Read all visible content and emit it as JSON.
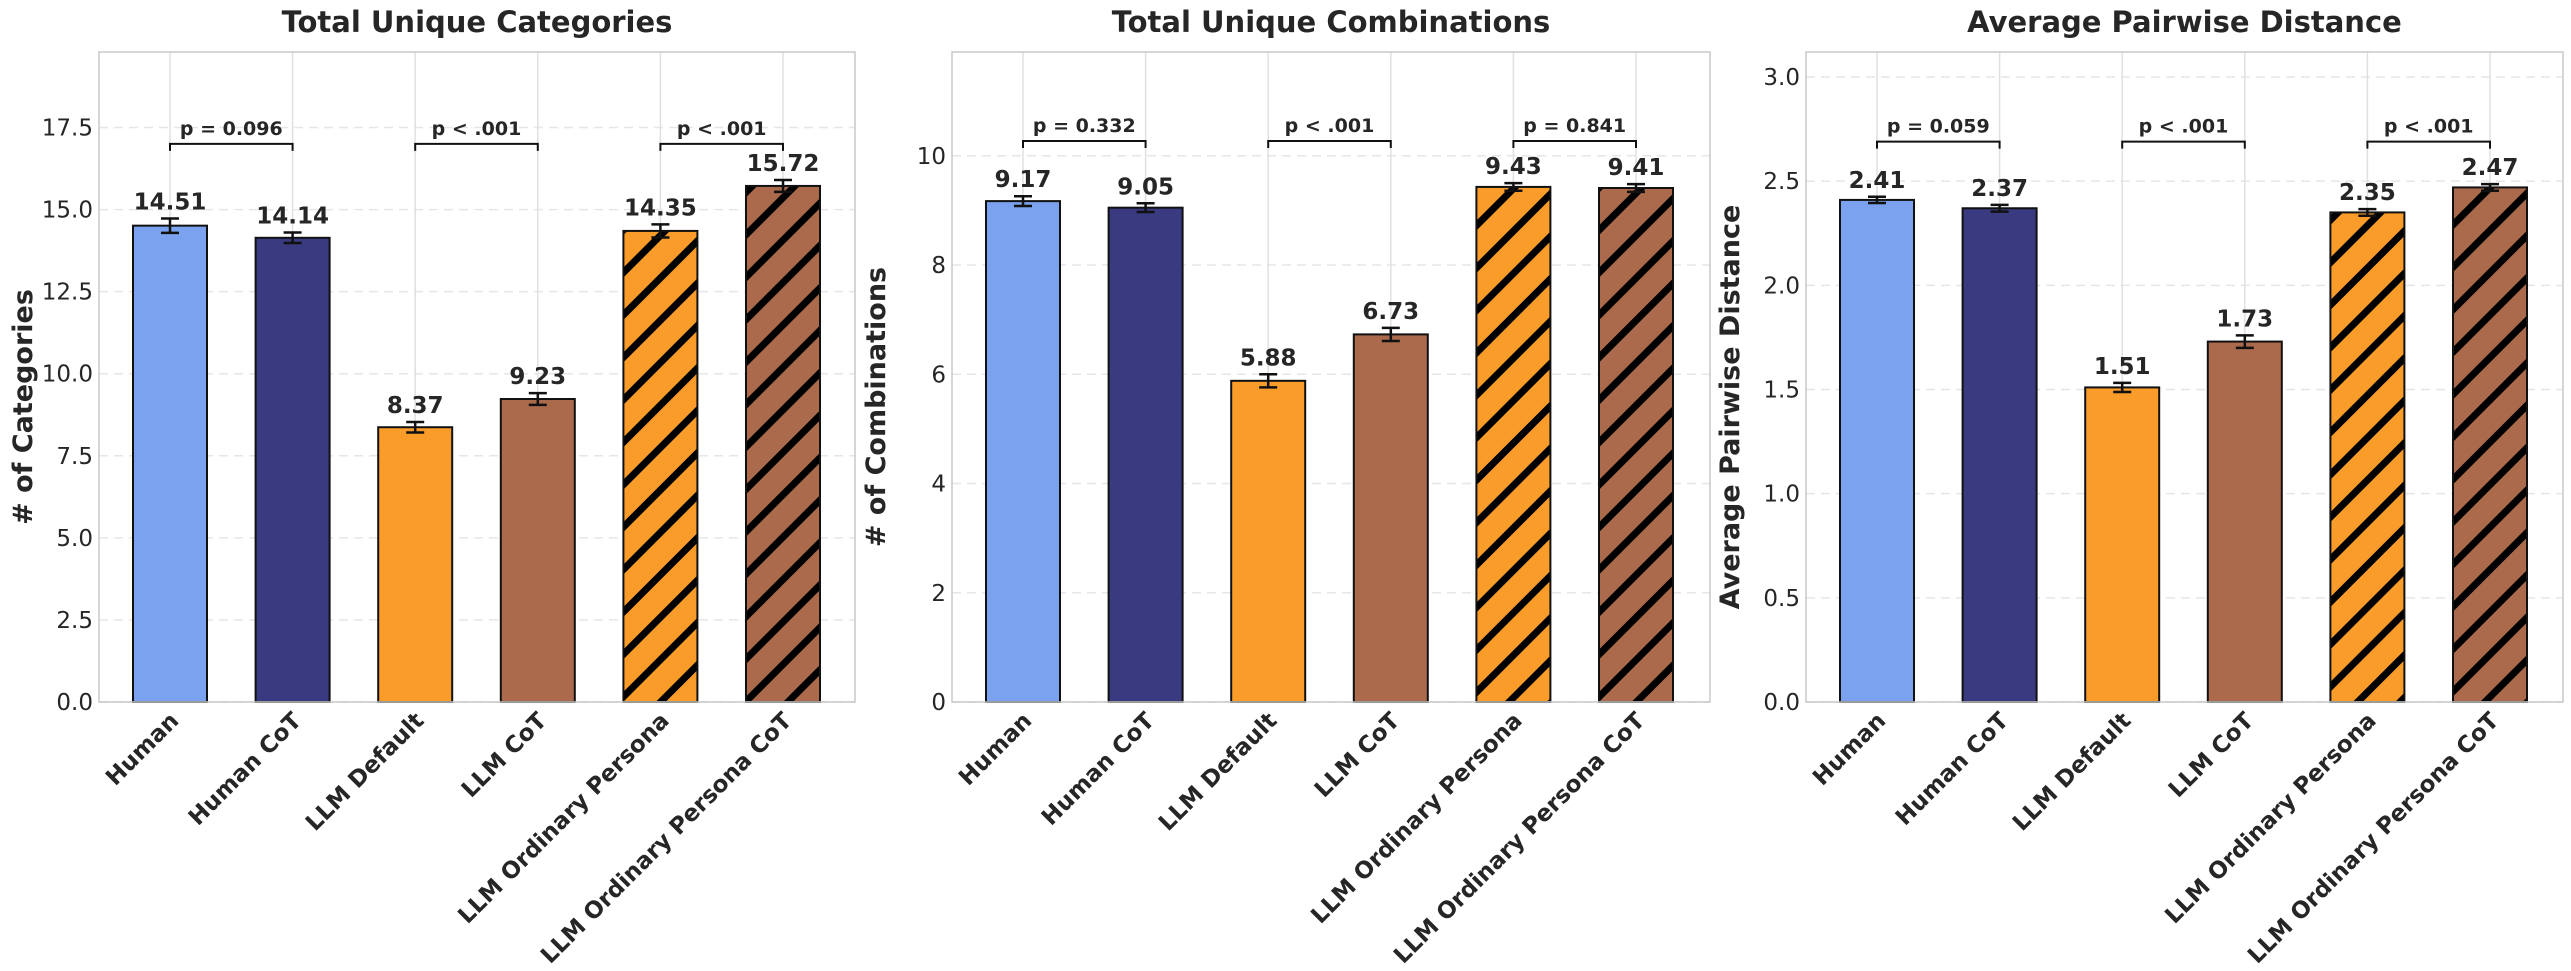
{
  "colors": {
    "Human": "#7aa2ee",
    "Human CoT": "#393a80",
    "LLM Default": "#f99c2a",
    "LLM CoT": "#ac6a4c",
    "LLM Ordinary Persona": "#f99c2a",
    "LLM Ordinary Persona CoT": "#ac6a4c"
  },
  "hatched": [
    "LLM Ordinary Persona",
    "LLM Ordinary Persona CoT"
  ],
  "chart_data": [
    {
      "type": "bar",
      "title": "Total Unique Categories",
      "xlabel": "",
      "ylabel": "# of Categories",
      "ylim": [
        0,
        19.8
      ],
      "yticks": [
        "0.0",
        "2.5",
        "5.0",
        "7.5",
        "10.0",
        "12.5",
        "15.0",
        "17.5"
      ],
      "categories": [
        "Human",
        "Human CoT",
        "LLM Default",
        "LLM CoT",
        "LLM Ordinary Persona",
        "LLM Ordinary Persona CoT"
      ],
      "values": [
        14.51,
        14.14,
        8.37,
        9.23,
        14.35,
        15.72
      ],
      "value_labels": [
        "14.51",
        "14.14",
        "8.37",
        "9.23",
        "14.35",
        "15.72"
      ],
      "errors": [
        0.22,
        0.16,
        0.16,
        0.18,
        0.2,
        0.18
      ],
      "comparisons": [
        {
          "pair": [
            0,
            1
          ],
          "label": "p = 0.096",
          "y": 17.0
        },
        {
          "pair": [
            2,
            3
          ],
          "label": "p < .001",
          "y": 17.0
        },
        {
          "pair": [
            4,
            5
          ],
          "label": "p < .001",
          "y": 17.0
        }
      ]
    },
    {
      "type": "bar",
      "title": "Total Unique Combinations",
      "xlabel": "",
      "ylabel": "# of Combinations",
      "ylim": [
        0,
        11.9
      ],
      "yticks": [
        "0",
        "2",
        "4",
        "6",
        "8",
        "10"
      ],
      "categories": [
        "Human",
        "Human CoT",
        "LLM Default",
        "LLM CoT",
        "LLM Ordinary Persona",
        "LLM Ordinary Persona CoT"
      ],
      "values": [
        9.17,
        9.05,
        5.88,
        6.73,
        9.43,
        9.41
      ],
      "value_labels": [
        "9.17",
        "9.05",
        "5.88",
        "6.73",
        "9.43",
        "9.41"
      ],
      "errors": [
        0.09,
        0.08,
        0.12,
        0.12,
        0.07,
        0.07
      ],
      "comparisons": [
        {
          "pair": [
            0,
            1
          ],
          "label": "p = 0.332",
          "y": 10.27
        },
        {
          "pair": [
            2,
            3
          ],
          "label": "p < .001",
          "y": 10.27
        },
        {
          "pair": [
            4,
            5
          ],
          "label": "p = 0.841",
          "y": 10.27
        }
      ]
    },
    {
      "type": "bar",
      "title": "Average Pairwise Distance",
      "xlabel": "",
      "ylabel": "Average Pairwise Distance",
      "ylim": [
        0,
        3.12
      ],
      "yticks": [
        "0.0",
        "0.5",
        "1.0",
        "1.5",
        "2.0",
        "2.5",
        "3.0"
      ],
      "categories": [
        "Human",
        "Human CoT",
        "LLM Default",
        "LLM CoT",
        "LLM Ordinary Persona",
        "LLM Ordinary Persona CoT"
      ],
      "values": [
        2.41,
        2.37,
        1.51,
        1.73,
        2.35,
        2.47
      ],
      "value_labels": [
        "2.41",
        "2.37",
        "1.51",
        "1.73",
        "2.35",
        "2.47"
      ],
      "errors": [
        0.015,
        0.016,
        0.022,
        0.03,
        0.016,
        0.016
      ],
      "comparisons": [
        {
          "pair": [
            0,
            1
          ],
          "label": "p = 0.059",
          "y": 2.69
        },
        {
          "pair": [
            2,
            3
          ],
          "label": "p < .001",
          "y": 2.69
        },
        {
          "pair": [
            4,
            5
          ],
          "label": "p < .001",
          "y": 2.69
        }
      ]
    }
  ]
}
